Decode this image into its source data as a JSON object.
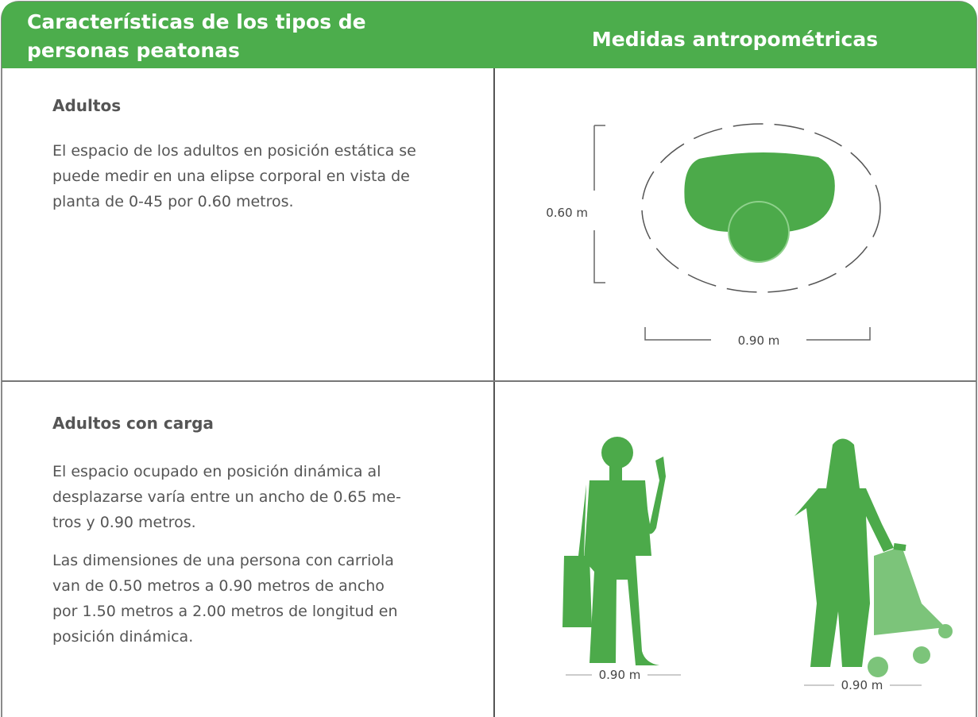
{
  "table": {
    "header": [
      [
        "Características de los tipos de",
        "personas peatonas"
      ],
      [
        "Medidas antropométricas"
      ]
    ],
    "rows": [
      {
        "title": "Adultos",
        "paragraphs": [
          [
            "El espacio de los adultos en posición estática se",
            "puede medir en una elipse corporal en vista de",
            "planta de 0-45 por 0.60 metros."
          ]
        ],
        "figure_labels": [
          "0.60 m",
          "0.90 m"
        ]
      },
      {
        "title": "Adultos con carga",
        "paragraphs": [
          [
            "El espacio ocupado en posición dinámica al",
            "desplazarse varía entre un ancho de 0.65 me-",
            "tros y 0.90 metros."
          ],
          [
            "Las dimensiones de una persona con carriola",
            "van de 0.50 metros a 0.90 metros de ancho",
            "por 1.50 metros a 2.00 metros de longitud en",
            "posición dinámica."
          ]
        ],
        "figure_labels": [
          "0.90 m",
          "0.90 m"
        ]
      }
    ]
  }
}
